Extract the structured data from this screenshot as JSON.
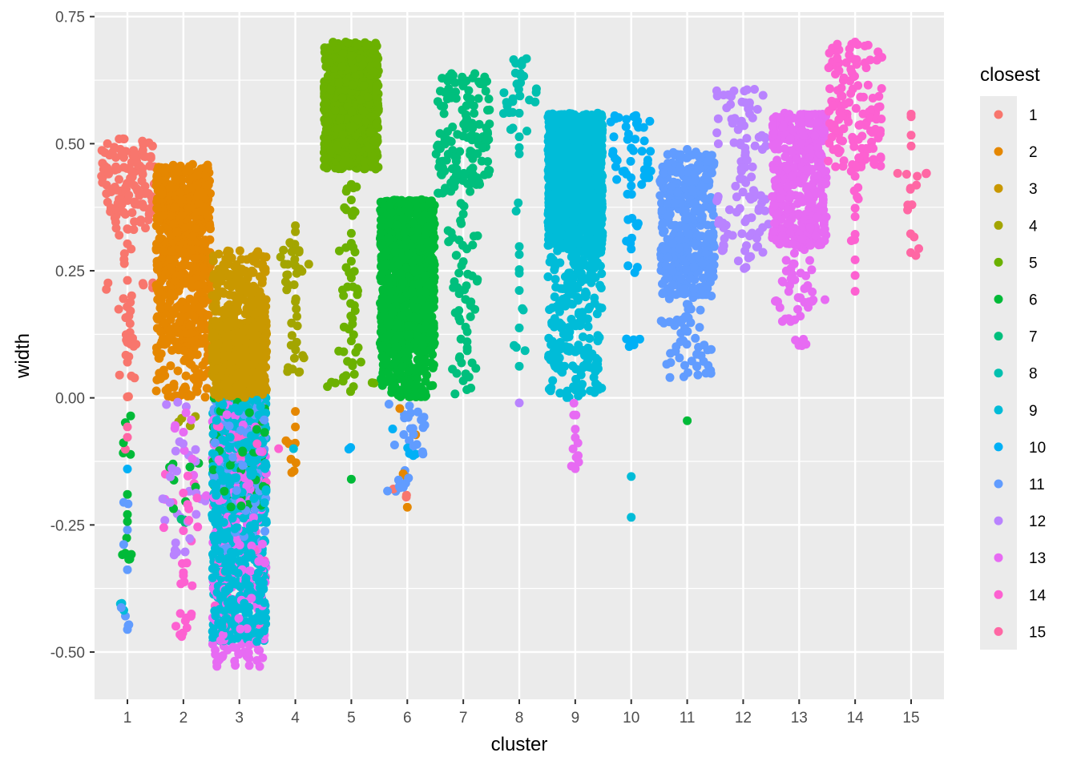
{
  "chart_data": {
    "type": "scatter",
    "subtype": "beeswarm",
    "title": "",
    "xlabel": "cluster",
    "ylabel": "width",
    "categories": [
      "1",
      "2",
      "3",
      "4",
      "5",
      "6",
      "7",
      "8",
      "9",
      "10",
      "11",
      "12",
      "13",
      "14",
      "15"
    ],
    "ylim": [
      -0.593,
      0.759
    ],
    "yticks": [
      -0.5,
      -0.25,
      0.0,
      0.25,
      0.5,
      0.75
    ],
    "ytick_labels": [
      "-0.50",
      "-0.25",
      "0.00",
      "0.25",
      "0.50",
      "0.75"
    ],
    "grid": true,
    "legend": {
      "title": "closest",
      "placement": "right",
      "entries": [
        "1",
        "2",
        "3",
        "4",
        "5",
        "6",
        "7",
        "8",
        "9",
        "10",
        "11",
        "12",
        "13",
        "14",
        "15"
      ]
    },
    "colors": [
      "#F8766D",
      "#E58700",
      "#C99800",
      "#A3A500",
      "#6BB100",
      "#00BA38",
      "#00BF7D",
      "#00C0AF",
      "#00BCD8",
      "#00B0F6",
      "#619CFF",
      "#B983FF",
      "#E76BF3",
      "#FD61D1",
      "#FF67A4"
    ],
    "clusters": [
      {
        "cluster": 1,
        "groups": [
          {
            "closest": 1,
            "from": 0.33,
            "to": 0.51,
            "n": 120
          },
          {
            "closest": 1,
            "from": 0.0,
            "to": 0.33,
            "n": 40
          },
          {
            "closest": 6,
            "from": -0.35,
            "to": -0.01,
            "n": 14
          },
          {
            "closest": 11,
            "from": -0.53,
            "to": -0.2,
            "n": 10
          },
          {
            "closest": 15,
            "from": -0.13,
            "to": -0.03,
            "n": 3
          },
          {
            "closest": 10,
            "from": -0.14,
            "to": -0.14,
            "n": 1
          },
          {
            "closest": 9,
            "from": -0.46,
            "to": -0.38,
            "n": 3
          }
        ]
      },
      {
        "cluster": 2,
        "groups": [
          {
            "closest": 2,
            "from": 0.25,
            "to": 0.46,
            "n": 480
          },
          {
            "closest": 2,
            "from": 0.1,
            "to": 0.25,
            "n": 200
          },
          {
            "closest": 2,
            "from": 0.0,
            "to": 0.1,
            "n": 70
          },
          {
            "closest": 12,
            "from": -0.34,
            "to": 0.0,
            "n": 30
          },
          {
            "closest": 14,
            "from": -0.49,
            "to": -0.15,
            "n": 30
          },
          {
            "closest": 13,
            "from": -0.2,
            "to": 0.0,
            "n": 10
          },
          {
            "closest": 4,
            "from": -0.09,
            "to": -0.03,
            "n": 4
          },
          {
            "closest": 6,
            "from": -0.22,
            "to": -0.1,
            "n": 8
          },
          {
            "closest": 7,
            "from": -0.32,
            "to": -0.2,
            "n": 3
          }
        ]
      },
      {
        "cluster": 3,
        "groups": [
          {
            "closest": 3,
            "from": 0.0,
            "to": 0.15,
            "n": 700
          },
          {
            "closest": 3,
            "from": 0.15,
            "to": 0.29,
            "n": 150
          },
          {
            "closest": 9,
            "from": -0.48,
            "to": 0.0,
            "n": 700
          },
          {
            "closest": 13,
            "from": -0.53,
            "to": 0.0,
            "n": 250
          },
          {
            "closest": 11,
            "from": -0.3,
            "to": 0.0,
            "n": 120
          },
          {
            "closest": 6,
            "from": -0.22,
            "to": 0.0,
            "n": 60
          },
          {
            "closest": 14,
            "from": -0.45,
            "to": -0.05,
            "n": 40
          }
        ]
      },
      {
        "cluster": 4,
        "groups": [
          {
            "closest": 4,
            "from": 0.05,
            "to": 0.34,
            "n": 45
          },
          {
            "closest": 2,
            "from": -0.15,
            "to": -0.02,
            "n": 9
          },
          {
            "closest": 14,
            "from": -0.1,
            "to": -0.1,
            "n": 1
          },
          {
            "closest": 9,
            "from": -0.1,
            "to": -0.1,
            "n": 1
          }
        ]
      },
      {
        "cluster": 5,
        "groups": [
          {
            "closest": 5,
            "from": 0.45,
            "to": 0.7,
            "n": 900
          },
          {
            "closest": 5,
            "from": 0.01,
            "to": 0.45,
            "n": 60
          },
          {
            "closest": 10,
            "from": -0.11,
            "to": -0.08,
            "n": 2
          },
          {
            "closest": 6,
            "from": -0.16,
            "to": -0.16,
            "n": 1
          }
        ]
      },
      {
        "cluster": 6,
        "groups": [
          {
            "closest": 6,
            "from": 0.1,
            "to": 0.39,
            "n": 1100
          },
          {
            "closest": 6,
            "from": 0.0,
            "to": 0.1,
            "n": 150
          },
          {
            "closest": 11,
            "from": -0.2,
            "to": 0.0,
            "n": 30
          },
          {
            "closest": 1,
            "from": -0.22,
            "to": -0.17,
            "n": 3
          },
          {
            "closest": 2,
            "from": -0.22,
            "to": -0.02,
            "n": 5
          },
          {
            "closest": 10,
            "from": -0.13,
            "to": -0.05,
            "n": 5
          }
        ]
      },
      {
        "cluster": 7,
        "groups": [
          {
            "closest": 7,
            "from": 0.4,
            "to": 0.64,
            "n": 150
          },
          {
            "closest": 7,
            "from": 0.0,
            "to": 0.4,
            "n": 60
          }
        ]
      },
      {
        "cluster": 8,
        "groups": [
          {
            "closest": 8,
            "from": 0.5,
            "to": 0.67,
            "n": 30
          },
          {
            "closest": 8,
            "from": 0.04,
            "to": 0.5,
            "n": 16
          },
          {
            "closest": 12,
            "from": -0.01,
            "to": -0.01,
            "n": 1
          }
        ]
      },
      {
        "cluster": 9,
        "groups": [
          {
            "closest": 9,
            "from": 0.3,
            "to": 0.56,
            "n": 1300
          },
          {
            "closest": 9,
            "from": 0.0,
            "to": 0.3,
            "n": 220
          },
          {
            "closest": 13,
            "from": -0.14,
            "to": 0.0,
            "n": 12
          }
        ]
      },
      {
        "cluster": 10,
        "groups": [
          {
            "closest": 10,
            "from": 0.4,
            "to": 0.56,
            "n": 45
          },
          {
            "closest": 10,
            "from": 0.1,
            "to": 0.4,
            "n": 18
          },
          {
            "closest": 9,
            "from": -0.26,
            "to": -0.13,
            "n": 2
          }
        ]
      },
      {
        "cluster": 11,
        "groups": [
          {
            "closest": 11,
            "from": 0.2,
            "to": 0.49,
            "n": 400
          },
          {
            "closest": 11,
            "from": 0.04,
            "to": 0.2,
            "n": 50
          },
          {
            "closest": 6,
            "from": -0.045,
            "to": -0.045,
            "n": 1
          }
        ]
      },
      {
        "cluster": 12,
        "groups": [
          {
            "closest": 12,
            "from": 0.25,
            "to": 0.61,
            "n": 110
          }
        ]
      },
      {
        "cluster": 13,
        "groups": [
          {
            "closest": 13,
            "from": 0.3,
            "to": 0.56,
            "n": 400
          },
          {
            "closest": 13,
            "from": 0.1,
            "to": 0.3,
            "n": 50
          }
        ]
      },
      {
        "cluster": 14,
        "groups": [
          {
            "closest": 14,
            "from": 0.45,
            "to": 0.7,
            "n": 140
          },
          {
            "closest": 14,
            "from": 0.16,
            "to": 0.45,
            "n": 14
          }
        ]
      },
      {
        "cluster": 15,
        "groups": [
          {
            "closest": 15,
            "from": 0.25,
            "to": 0.61,
            "n": 20
          }
        ]
      }
    ]
  }
}
